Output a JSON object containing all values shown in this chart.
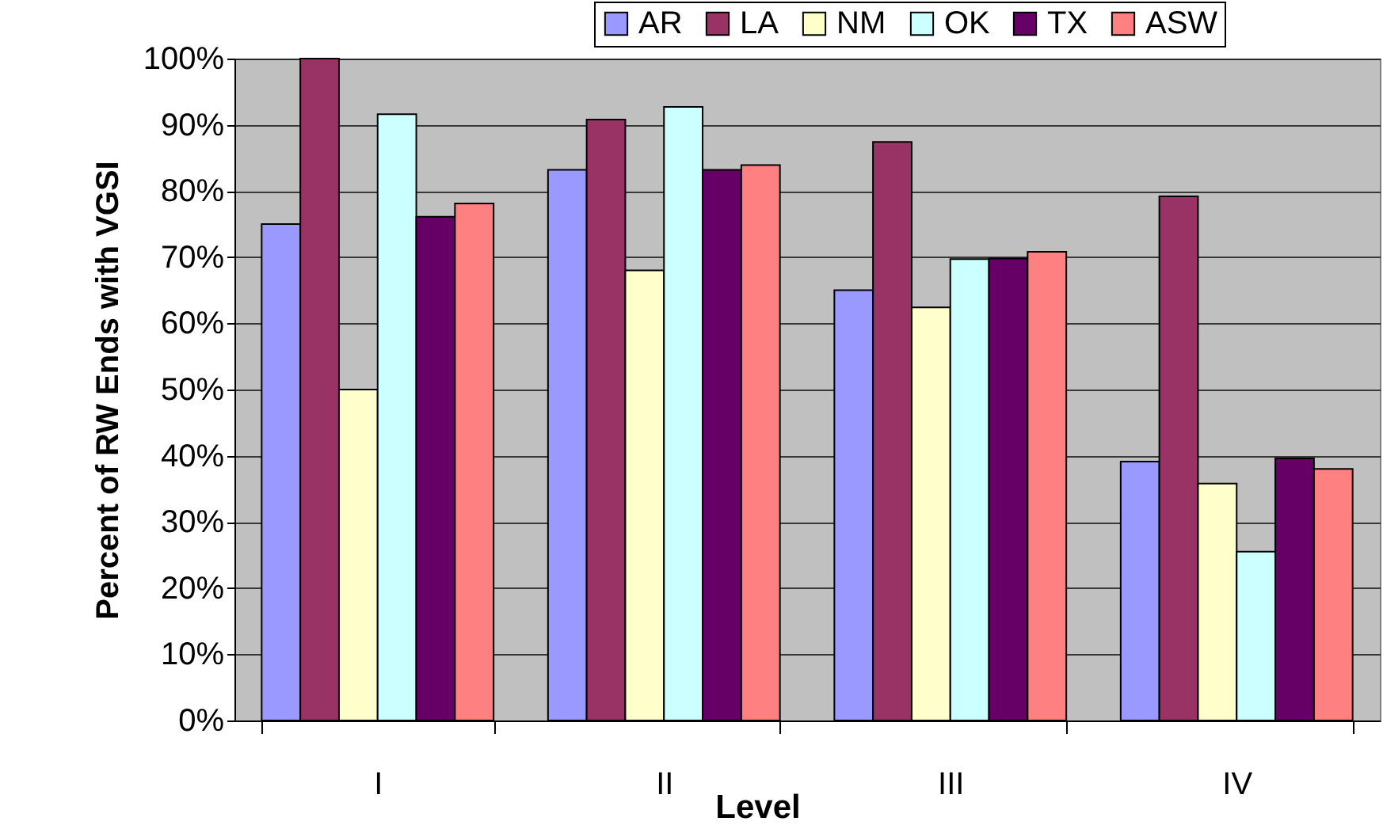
{
  "chart_data": {
    "type": "bar",
    "xlabel": "Level",
    "ylabel": "Percent of RW Ends with VGSI",
    "categories": [
      "I",
      "II",
      "III",
      "IV"
    ],
    "series": [
      {
        "name": "AR",
        "color": "#9999ff",
        "values": [
          75,
          83.2,
          65,
          39.1
        ]
      },
      {
        "name": "LA",
        "color": "#993366",
        "values": [
          100,
          90.8,
          87.4,
          79.2
        ]
      },
      {
        "name": "NM",
        "color": "#ffffcc",
        "values": [
          50,
          68,
          62.4,
          35.8
        ]
      },
      {
        "name": "OK",
        "color": "#ccffff",
        "values": [
          91.6,
          92.7,
          69.7,
          25.5
        ]
      },
      {
        "name": "TX",
        "color": "#660066",
        "values": [
          76.1,
          83.2,
          69.8,
          39.6
        ]
      },
      {
        "name": "ASW",
        "color": "#ff8080",
        "values": [
          78.1,
          83.9,
          70.8,
          38
        ]
      }
    ],
    "ylim": [
      0,
      100
    ],
    "yticks": [
      {
        "value": 0,
        "label": "0%"
      },
      {
        "value": 10,
        "label": "10%"
      },
      {
        "value": 20,
        "label": "20%"
      },
      {
        "value": 30,
        "label": "30%"
      },
      {
        "value": 40,
        "label": "40%"
      },
      {
        "value": 50,
        "label": "50%"
      },
      {
        "value": 60,
        "label": "60%"
      },
      {
        "value": 70,
        "label": "70%"
      },
      {
        "value": 80,
        "label": "80%"
      },
      {
        "value": 90,
        "label": "90%"
      },
      {
        "value": 100,
        "label": "100%"
      }
    ],
    "grid": "y",
    "legend": "top right"
  }
}
